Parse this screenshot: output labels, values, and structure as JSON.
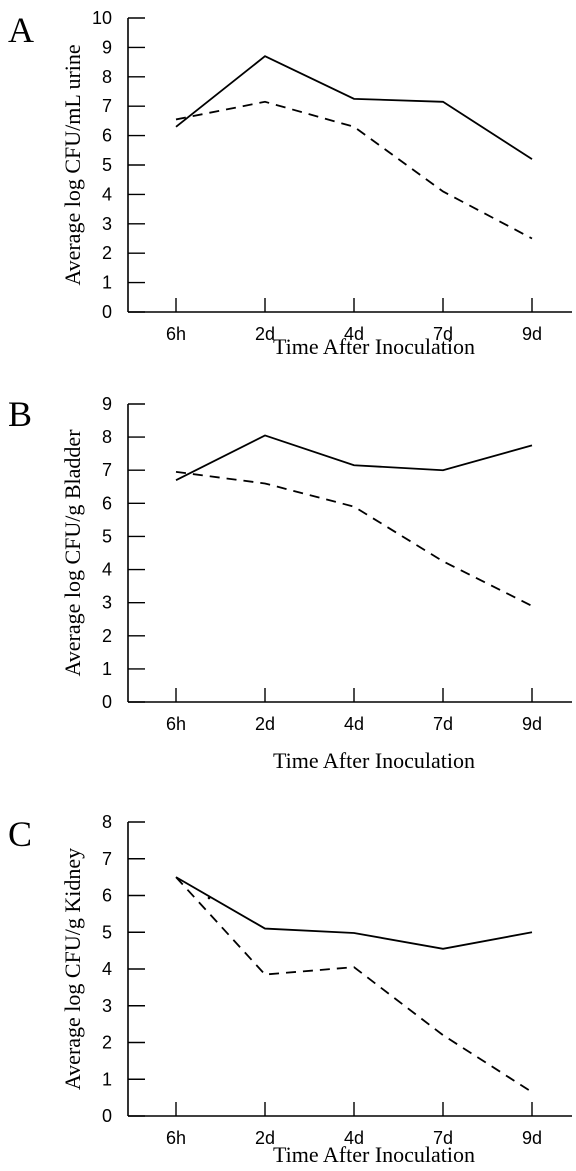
{
  "chart_data": [
    {
      "panel": "A",
      "type": "line",
      "categories": [
        "6h",
        "2d",
        "4d",
        "7d",
        "9d"
      ],
      "series": [
        {
          "style": "solid",
          "values": [
            6.3,
            8.7,
            7.25,
            7.15,
            5.2
          ]
        },
        {
          "style": "dashed",
          "values": [
            6.55,
            7.15,
            6.3,
            4.1,
            2.5
          ]
        }
      ],
      "xlabel": "Time After Inoculation",
      "ylabel": "Average log CFU/mL urine",
      "ylim": [
        0,
        10
      ],
      "yticks": [
        "0",
        "1",
        "2",
        "3",
        "4",
        "5",
        "6",
        "7",
        "8",
        "9",
        "10"
      ],
      "grid": false
    },
    {
      "panel": "B",
      "type": "line",
      "categories": [
        "6h",
        "2d",
        "4d",
        "7d",
        "9d"
      ],
      "series": [
        {
          "style": "solid",
          "values": [
            6.7,
            8.05,
            7.15,
            7.0,
            7.75
          ]
        },
        {
          "style": "dashed",
          "values": [
            6.95,
            6.6,
            5.9,
            4.25,
            2.9
          ]
        }
      ],
      "xlabel": "Time After Inoculation",
      "ylabel": "Average log CFU/g Bladder",
      "ylim": [
        0,
        9
      ],
      "yticks": [
        "0",
        "1",
        "2",
        "3",
        "4",
        "5",
        "6",
        "7",
        "8",
        "9"
      ],
      "grid": false
    },
    {
      "panel": "C",
      "type": "line",
      "categories": [
        "6h",
        "2d",
        "4d",
        "7d",
        "9d"
      ],
      "series": [
        {
          "style": "solid",
          "values": [
            6.5,
            5.1,
            4.98,
            4.55,
            5.0
          ]
        },
        {
          "style": "dashed",
          "values": [
            6.5,
            3.85,
            4.05,
            2.2,
            0.65
          ]
        }
      ],
      "xlabel": "Time After Inoculation",
      "ylabel": "Average log CFU/g Kidney",
      "ylim": [
        0,
        8
      ],
      "yticks": [
        "0",
        "1",
        "2",
        "3",
        "4",
        "5",
        "6",
        "7",
        "8"
      ],
      "grid": false
    }
  ]
}
